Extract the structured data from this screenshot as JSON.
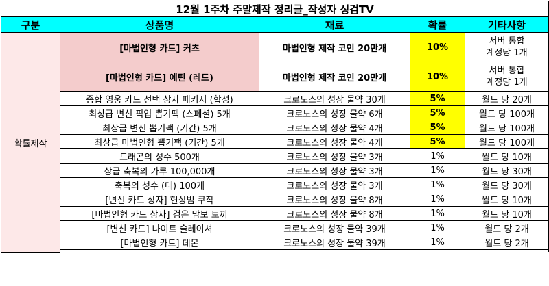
{
  "title": "12월 1주차 주말제작 정리글_작성자 싱검TV",
  "headers": [
    "구분",
    "상품명",
    "재료",
    "확률",
    "기타사항"
  ],
  "category": "확률제작",
  "rows": [
    {
      "product": "[마법인형 카드] 커츠",
      "material": "마법인형 제작 코인 20만개",
      "prob": "10%",
      "note1": "서버 통합",
      "note2": "계정당 1개"
    },
    {
      "product": "[마법인형 카드] 에틴 (레드)",
      "material": "마법인형 제작 코인 20만개",
      "prob": "10%",
      "note1": "서버 통합",
      "note2": "계정당 1개"
    },
    {
      "product": "종합 영웅 카드 선택 상자 패키지 (합성)",
      "material": "크로노스의 성장 물약 30개",
      "prob": "5%",
      "note": "월드 당 20개"
    },
    {
      "product": "최상급 변신 픽업 뽑기팩 (스페셜) 5개",
      "material": "크로노스의 성장 물약 6개",
      "prob": "5%",
      "note": "월드 당 100개"
    },
    {
      "product": "최상급 변신 뽑기팩 (기간) 5개",
      "material": "크로노스의 성장 물약 4개",
      "prob": "5%",
      "note": "월드 당 100개"
    },
    {
      "product": "최상급 마법인형 뽑기팩 (기간) 5개",
      "material": "크로노스의 성장 물약 4개",
      "prob": "5%",
      "note": "월드 당 100개"
    },
    {
      "product": "드래곤의 성수 500개",
      "material": "크로노스의 성장 물약 3개",
      "prob": "1%",
      "note": "월드 당 10개"
    },
    {
      "product": "상급 축복의 가루 100,000개",
      "material": "크로노스의 성장 물약 3개",
      "prob": "1%",
      "note": "월드 당 30개"
    },
    {
      "product": "축복의 성수 (대) 100개",
      "material": "크로노스의 성장 물약 3개",
      "prob": "1%",
      "note": "월드 당 30개"
    },
    {
      "product": "[변신 카드 상자] 현상범 쿠작",
      "material": "크로노스의 성장 물약 8개",
      "prob": "1%",
      "note": "월드 당 10개"
    },
    {
      "product": "[마법인형 카드 상자] 검은 맘보 토끼",
      "material": "크로노스의 성장 물약 8개",
      "prob": "1%",
      "note": "월드 당 10개"
    },
    {
      "product": "[변신 카드] 나이트 슬레이셔",
      "material": "크로노스의 성장 물약 39개",
      "prob": "1%",
      "note": "월드 당 2개"
    },
    {
      "product": "[마법인형 카드] 데몬",
      "material": "크로노스의 성장 물약 39개",
      "prob": "1%",
      "note": "월드 당 2개"
    }
  ]
}
